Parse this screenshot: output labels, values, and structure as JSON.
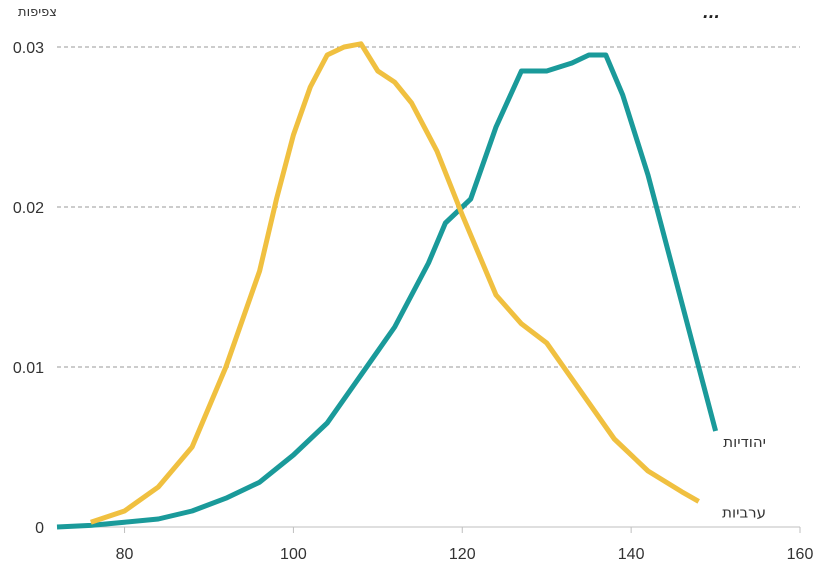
{
  "chart_data": {
    "type": "line",
    "title": "...",
    "ylabel": "צפיפות",
    "xlabel": "",
    "xlim": [
      72,
      160
    ],
    "ylim": [
      0,
      0.03
    ],
    "x_ticks": [
      80,
      100,
      120,
      140,
      160
    ],
    "y_ticks": [
      0,
      0.01,
      0.02,
      0.03
    ],
    "y_tick_labels": [
      "0",
      "0.01",
      "0.02",
      "0.03"
    ],
    "grid": "horizontal dashed",
    "legend": "inline labels at line ends",
    "series": [
      {
        "name": "יהודיות",
        "color": "#1a9a9a",
        "points": [
          [
            72,
            0
          ],
          [
            76,
            0.0001
          ],
          [
            80,
            0.0003
          ],
          [
            84,
            0.0005
          ],
          [
            88,
            0.001
          ],
          [
            92,
            0.0018
          ],
          [
            96,
            0.0028
          ],
          [
            100,
            0.0045
          ],
          [
            104,
            0.0065
          ],
          [
            108,
            0.0095
          ],
          [
            112,
            0.0125
          ],
          [
            116,
            0.0165
          ],
          [
            118,
            0.019
          ],
          [
            121,
            0.0205
          ],
          [
            124,
            0.025
          ],
          [
            127,
            0.0285
          ],
          [
            130,
            0.0285
          ],
          [
            133,
            0.029
          ],
          [
            135,
            0.0295
          ],
          [
            137,
            0.0295
          ],
          [
            139,
            0.027
          ],
          [
            142,
            0.022
          ],
          [
            145,
            0.016
          ],
          [
            148,
            0.01
          ],
          [
            150,
            0.006
          ]
        ]
      },
      {
        "name": "ערביות",
        "color": "#f0c040",
        "points": [
          [
            76,
            0.0003
          ],
          [
            80,
            0.001
          ],
          [
            84,
            0.0025
          ],
          [
            88,
            0.005
          ],
          [
            92,
            0.01
          ],
          [
            96,
            0.016
          ],
          [
            98,
            0.0205
          ],
          [
            100,
            0.0245
          ],
          [
            102,
            0.0275
          ],
          [
            104,
            0.0295
          ],
          [
            106,
            0.03
          ],
          [
            108,
            0.0302
          ],
          [
            110,
            0.0285
          ],
          [
            112,
            0.0278
          ],
          [
            114,
            0.0265
          ],
          [
            117,
            0.0235
          ],
          [
            120,
            0.0195
          ],
          [
            124,
            0.0145
          ],
          [
            127,
            0.0127
          ],
          [
            130,
            0.0115
          ],
          [
            134,
            0.0085
          ],
          [
            138,
            0.0055
          ],
          [
            142,
            0.0035
          ],
          [
            146,
            0.0022
          ],
          [
            148,
            0.0016
          ]
        ]
      }
    ]
  }
}
